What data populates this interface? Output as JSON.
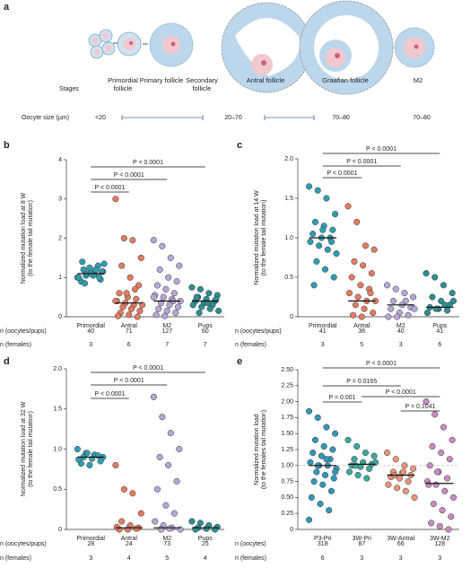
{
  "diagram": {
    "panel": "a",
    "stages_label": "Stages",
    "stages": [
      "Primordial follicle",
      "Primary follicle",
      "Secondary follicle",
      "Antral follicle",
      "Graafian follicle",
      "M2"
    ],
    "size_label": "Oocyte size (µm)",
    "sizes": [
      "<20",
      "20–70",
      "70–80",
      "70–80"
    ]
  },
  "chart_data": [
    {
      "type": "strip",
      "panel": "b",
      "ylabel": [
        "Normalized mutation load at 8 W",
        "(to the female tail mutation)"
      ],
      "ylim": [
        0,
        4
      ],
      "yticks": [
        0,
        1,
        2,
        3,
        4
      ],
      "series": [
        {
          "name": "Primordial",
          "color": "#2f9eb0",
          "median": 1.1,
          "values": [
            1.0,
            1.05,
            1.1,
            1.15,
            1.2,
            1.1,
            0.95,
            0.9,
            1.25,
            1.3,
            1.0,
            1.1,
            1.2,
            1.35,
            0.85,
            1.05,
            1.15,
            1.4,
            1.1,
            1.0
          ]
        },
        {
          "name": "Antral",
          "color": "#e27b62",
          "median": 0.35,
          "values": [
            3.0,
            2.0,
            1.95,
            1.5,
            1.3,
            1.0,
            0.8,
            0.6,
            0.5,
            0.45,
            0.4,
            0.35,
            0.3,
            0.3,
            0.25,
            0.2,
            0.15,
            0.1,
            0.05,
            0.0,
            0.02,
            0.6,
            0.7,
            0.4
          ]
        },
        {
          "name": "M2",
          "color": "#b8a5d6",
          "median": 0.4,
          "values": [
            1.95,
            1.8,
            1.5,
            1.3,
            1.2,
            1.0,
            0.9,
            0.8,
            0.7,
            0.6,
            0.55,
            0.5,
            0.45,
            0.4,
            0.35,
            0.3,
            0.25,
            0.2,
            0.15,
            0.1,
            0.05,
            0.02,
            0.4,
            0.5
          ]
        },
        {
          "name": "Pups",
          "color": "#2d8f92",
          "median": 0.4,
          "values": [
            0.75,
            0.7,
            0.6,
            0.55,
            0.5,
            0.45,
            0.4,
            0.4,
            0.35,
            0.3,
            0.3,
            0.25,
            0.2,
            0.15,
            0.1,
            0.35,
            0.45,
            0.5
          ]
        }
      ],
      "comparisons": [
        "P < 0.0001",
        "P < 0.0001",
        "P < 0.0001"
      ],
      "count_rows": [
        {
          "label": "n (oocytes/pups)",
          "values": [
            40,
            71,
            127,
            60
          ]
        },
        {
          "label": "n (females)",
          "values": [
            3,
            6,
            7,
            7
          ]
        }
      ]
    },
    {
      "type": "strip",
      "panel": "c",
      "ylabel": [
        "Normalized mutation load at 14 W",
        "(to the female tail mutation)"
      ],
      "ylim": [
        0,
        2
      ],
      "yticks": [
        0,
        0.5,
        {
          "value": 1,
          "label": "1.0"
        },
        1.5,
        {
          "value": 2,
          "label": "2.0"
        }
      ],
      "series": [
        {
          "name": "Primordial",
          "color": "#2f9eb0",
          "median": 1.0,
          "values": [
            1.65,
            1.6,
            1.5,
            1.3,
            1.2,
            1.15,
            1.1,
            1.05,
            1.0,
            1.0,
            0.95,
            0.9,
            0.85,
            0.8,
            0.7,
            0.6,
            0.5,
            0.4,
            1.1,
            0.95
          ]
        },
        {
          "name": "Antral",
          "color": "#e27b62",
          "median": 0.2,
          "values": [
            1.4,
            1.2,
            0.9,
            0.85,
            0.7,
            0.65,
            0.55,
            0.5,
            0.4,
            0.35,
            0.3,
            0.25,
            0.2,
            0.2,
            0.15,
            0.1,
            0.05,
            0.02,
            0.0,
            0.3
          ]
        },
        {
          "name": "M2",
          "color": "#b8a5d6",
          "median": 0.15,
          "values": [
            0.4,
            0.35,
            0.3,
            0.25,
            0.2,
            0.15,
            0.12,
            0.1,
            0.05,
            0.02,
            0.0,
            0.0,
            0.2,
            0.1
          ]
        },
        {
          "name": "Pups",
          "color": "#2d8f92",
          "median": 0.12,
          "values": [
            0.55,
            0.5,
            0.4,
            0.3,
            0.25,
            0.2,
            0.15,
            0.12,
            0.1,
            0.08,
            0.05,
            0.1,
            0.15,
            0.2
          ]
        }
      ],
      "comparisons": [
        "P < 0.0001",
        "P < 0.0001",
        "P < 0.0001"
      ],
      "count_rows": [
        {
          "label": "n (oocytes/pups)",
          "values": [
            41,
            36,
            40,
            41
          ]
        },
        {
          "label": "n (females)",
          "values": [
            3,
            5,
            3,
            6
          ]
        }
      ]
    },
    {
      "type": "strip",
      "panel": "d",
      "ylabel": [
        "Normalized mutation load at 32 W",
        "(to the female tail mutation)"
      ],
      "ylim": [
        0,
        2
      ],
      "yticks": [
        0,
        0.5,
        {
          "value": 1,
          "label": "1.0"
        },
        1.5,
        {
          "value": 2,
          "label": "2.0"
        }
      ],
      "series": [
        {
          "name": "Primordial",
          "color": "#2f9eb0",
          "median": 0.9,
          "values": [
            1.0,
            0.95,
            0.93,
            0.9,
            0.9,
            0.88,
            0.85,
            0.82,
            0.8,
            0.92,
            0.87,
            0.95
          ]
        },
        {
          "name": "Antral",
          "color": "#e27b62",
          "median": 0.02,
          "values": [
            0.8,
            0.5,
            0.45,
            0.2,
            0.1,
            0.05,
            0.02,
            0.0,
            0.0,
            0.01,
            0.03
          ]
        },
        {
          "name": "M2",
          "color": "#b8a5d6",
          "median": 0.02,
          "values": [
            1.65,
            1.4,
            1.2,
            1.0,
            0.9,
            0.8,
            0.6,
            0.5,
            0.3,
            0.2,
            0.1,
            0.05,
            0.02,
            0.0,
            0.0,
            0.01
          ]
        },
        {
          "name": "Pups",
          "color": "#2d8f92",
          "median": 0.02,
          "values": [
            0.1,
            0.08,
            0.05,
            0.03,
            0.02,
            0.01,
            0.0,
            0.0
          ]
        }
      ],
      "comparisons": [
        "P < 0.0001",
        "P < 0.0001",
        "P < 0.0001"
      ],
      "count_rows": [
        {
          "label": "n (oocytes/pups)",
          "values": [
            28,
            24,
            73,
            25
          ]
        },
        {
          "label": "n (females)",
          "values": [
            3,
            4,
            5,
            4
          ]
        }
      ]
    },
    {
      "type": "strip",
      "panel": "e",
      "ylabel": [
        "Normalized mutation load",
        "(to the females tail mutation)"
      ],
      "ylim": [
        0,
        2.5
      ],
      "yticks": [
        0,
        0.25,
        {
          "value": 0.5,
          "label": "0.50"
        },
        0.75,
        {
          "value": 1,
          "label": "1.00"
        },
        1.25,
        {
          "value": 1.5,
          "label": "1.50"
        },
        1.75,
        {
          "value": 2,
          "label": "2.00"
        },
        2.25,
        {
          "value": 2.5,
          "label": "2.50"
        }
      ],
      "reference_line": 1,
      "series": [
        {
          "name": "P3-Pri",
          "color": "#3596b8",
          "median": 1.0,
          "values": [
            1.85,
            1.75,
            1.6,
            1.5,
            1.4,
            1.3,
            1.25,
            1.2,
            1.15,
            1.1,
            1.05,
            1.0,
            1.0,
            0.95,
            0.9,
            0.85,
            0.8,
            0.75,
            0.7,
            0.6,
            0.5,
            0.4,
            0.3,
            0.15,
            1.0,
            1.1,
            0.9
          ]
        },
        {
          "name": "3W-Pri",
          "color": "#3aa89a",
          "median": 1.02,
          "values": [
            1.4,
            1.3,
            1.2,
            1.15,
            1.1,
            1.05,
            1.02,
            1.0,
            0.98,
            0.95,
            0.9,
            0.85,
            0.8,
            1.05,
            1.0
          ]
        },
        {
          "name": "3W-Antral",
          "color": "#e8957a",
          "median": 0.85,
          "values": [
            1.2,
            1.1,
            1.0,
            0.95,
            0.9,
            0.88,
            0.85,
            0.82,
            0.8,
            0.75,
            0.7,
            0.65,
            0.6,
            0.5,
            0.85,
            0.9
          ]
        },
        {
          "name": "3W-M2",
          "color": "#c98bc2",
          "median": 0.72,
          "values": [
            2.0,
            1.8,
            1.6,
            1.4,
            1.3,
            1.2,
            1.1,
            1.0,
            0.9,
            0.8,
            0.75,
            0.7,
            0.6,
            0.5,
            0.4,
            0.3,
            0.2,
            0.1,
            0.05,
            0.0,
            0.7,
            0.9
          ]
        }
      ],
      "comparisons": [
        "P < 0.0001",
        "P = 0.0165",
        "P = 0.001",
        "P < 0.0001",
        "P = 0.1041"
      ],
      "count_rows": [
        {
          "label": "n (oocytes)",
          "values": [
            318,
            87,
            66,
            128
          ]
        },
        {
          "label": "n (females)",
          "values": [
            6,
            3,
            3,
            3
          ]
        }
      ]
    }
  ]
}
